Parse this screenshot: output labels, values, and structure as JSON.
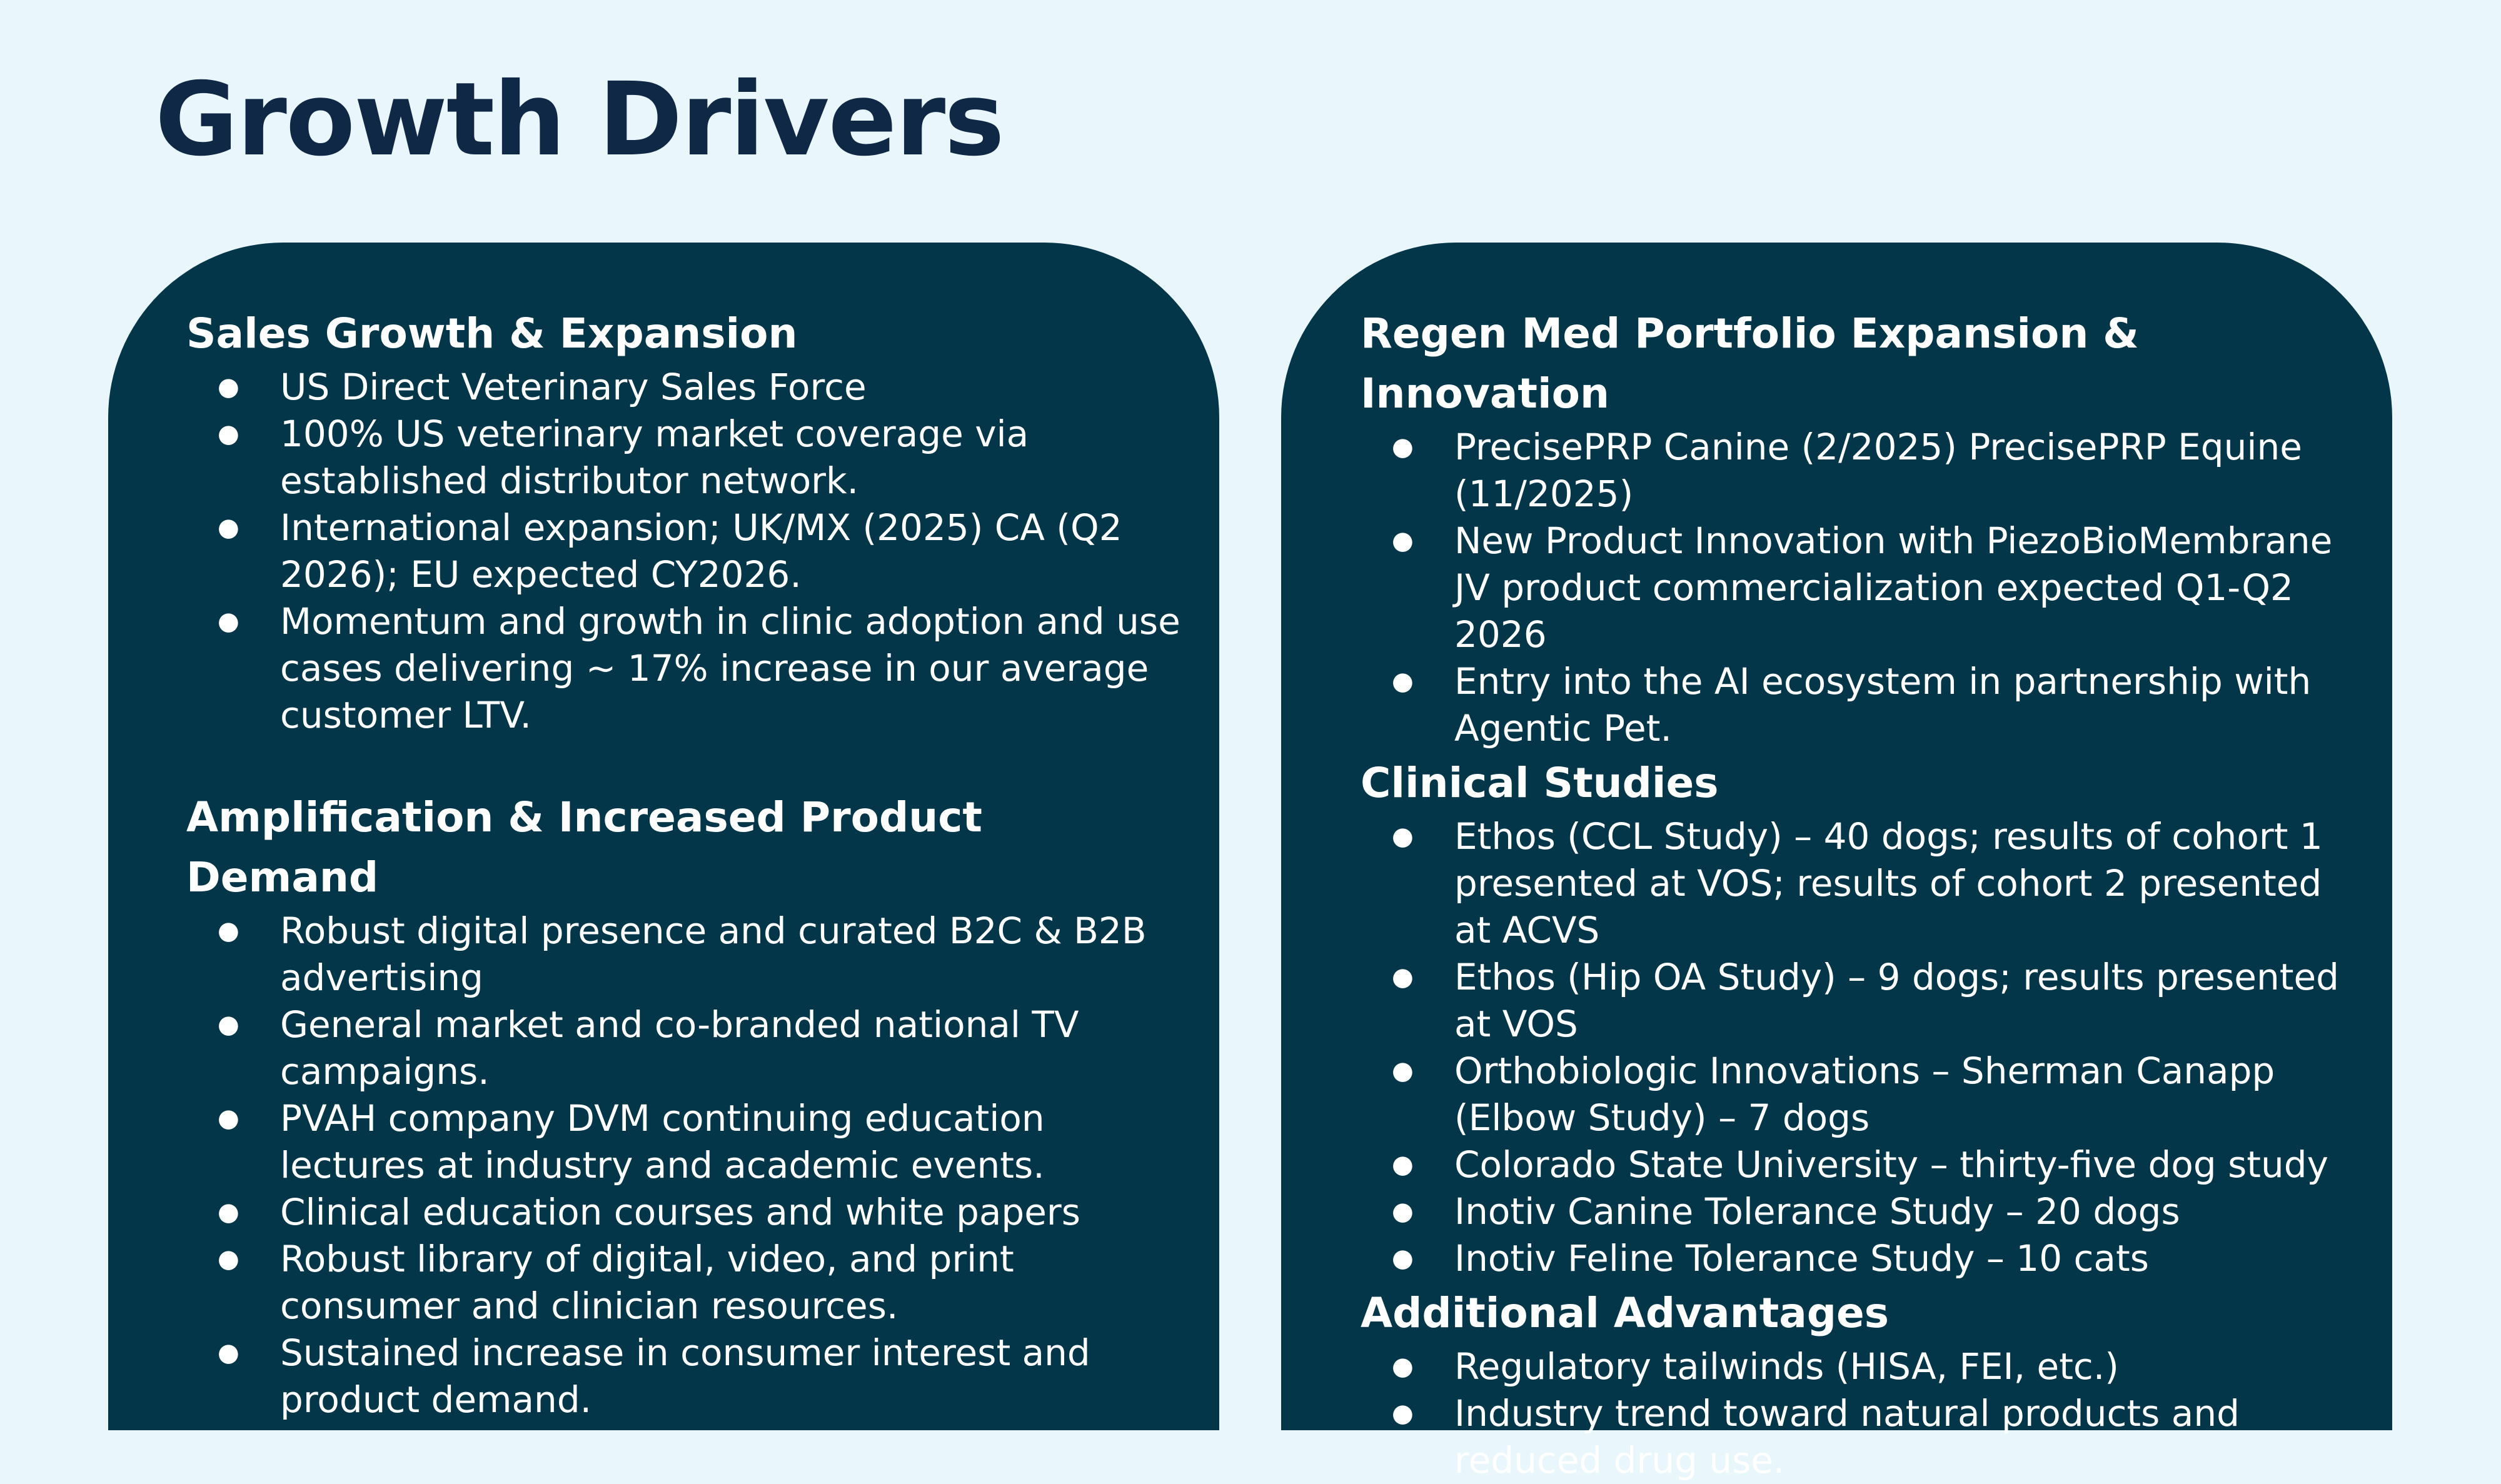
{
  "title": "Growth Drivers",
  "colors": {
    "background": "#e9f6fc",
    "card": "#033649",
    "title": "#0f2846",
    "card_text": "#ffffff"
  },
  "left_column": {
    "sections": [
      {
        "heading": "Sales Growth &  Expansion",
        "bullets": [
          "US Direct Veterinary Sales Force",
          "100% US veterinary market coverage via established distributor network.",
          "International expansion; UK/MX (2025)  CA (Q2 2026); EU expected CY2026.",
          "Momentum and growth in clinic adoption and use cases delivering ~ 17% increase in our average customer LTV."
        ]
      },
      {
        "heading": "Amplification & Increased Product Demand",
        "bullets": [
          "Robust digital presence and curated B2C & B2B advertising",
          "General market and co-branded national TV campaigns.",
          "PVAH company DVM continuing education lectures at industry and academic events.",
          "Clinical education courses and white papers",
          "Robust library of digital, video, and print consumer and clinician resources.",
          "Sustained increase in consumer interest and product demand."
        ]
      }
    ]
  },
  "right_column": {
    "sections": [
      {
        "heading": "Regen Med Portfolio Expansion & Innovation",
        "bullets": [
          "PrecisePRP Canine (2/2025) PrecisePRP Equine (11/2025)",
          "New Product Innovation with  PiezoBioMembrane JV product commercialization expected Q1-Q2 2026",
          "Entry into the AI ecosystem in partnership with Agentic Pet."
        ]
      },
      {
        "heading": "Clinical Studies",
        "bullets": [
          "Ethos (CCL Study) – 40 dogs; results of cohort 1 presented at VOS; results of cohort 2 presented at ACVS",
          "Ethos (Hip OA Study) – 9 dogs; results presented at VOS",
          "Orthobiologic Innovations – Sherman Canapp (Elbow Study) – 7 dogs",
          "Colorado State University  – thirty-five dog study",
          "Inotiv Canine Tolerance Study – 20 dogs",
          "Inotiv Feline Tolerance Study – 10 cats"
        ]
      },
      {
        "heading": "Additional Advantages",
        "bullets": [
          "Regulatory tailwinds (HISA, FEI, etc.)",
          "Industry trend toward natural products and reduced drug use."
        ]
      }
    ]
  }
}
